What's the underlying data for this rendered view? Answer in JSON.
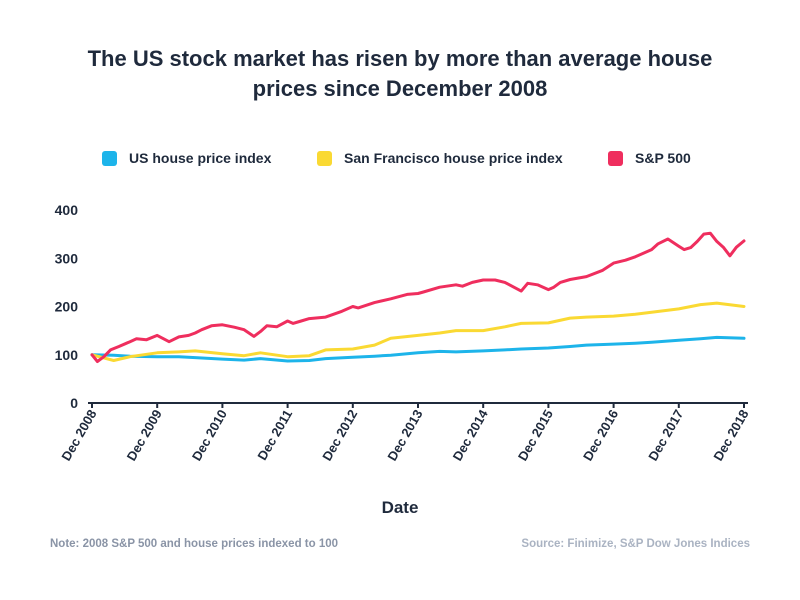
{
  "header": {
    "title_line1": "The US stock market has risen by more than average house",
    "title_line2": "prices since December 2008"
  },
  "footer": {
    "note": "Note: 2008 S&P 500 and house prices indexed to 100",
    "source": "Source: Finimize, S&P Dow Jones Indices"
  },
  "chart_data": {
    "type": "line",
    "title": "The US stock market has risen by more than average house prices since December 2008",
    "xlabel": "Date",
    "ylabel": "",
    "xlim": [
      2008.917,
      2018.917
    ],
    "ylim": [
      0,
      400
    ],
    "y_ticks": [
      0,
      100,
      200,
      300,
      400
    ],
    "x_tick_labels": [
      "Dec 2008",
      "Dec 2009",
      "Dec 2010",
      "Dec 2011",
      "Dec 2012",
      "Dec 2013",
      "Dec 2014",
      "Dec 2015",
      "Dec 2016",
      "Dec 2017",
      "Dec 2018"
    ],
    "x_tick_values": [
      2008.917,
      2009.917,
      2010.917,
      2011.917,
      2012.917,
      2013.917,
      2014.917,
      2015.917,
      2016.917,
      2017.917,
      2018.917
    ],
    "grid": false,
    "legend_position": "top",
    "series": [
      {
        "name": "US house price index",
        "color": "#1db4ea",
        "x": [
          2008.917,
          2009.25,
          2009.5,
          2009.917,
          2010.25,
          2010.5,
          2010.917,
          2011.25,
          2011.5,
          2011.917,
          2012.25,
          2012.5,
          2012.917,
          2013.25,
          2013.5,
          2013.917,
          2014.25,
          2014.5,
          2014.917,
          2015.25,
          2015.5,
          2015.917,
          2016.25,
          2016.5,
          2016.917,
          2017.25,
          2017.5,
          2017.917,
          2018.25,
          2018.5,
          2018.917
        ],
        "y": [
          100,
          99,
          97,
          96,
          96,
          94,
          91,
          89,
          92,
          87,
          88,
          92,
          95,
          97,
          99,
          104,
          107,
          106,
          108,
          110,
          112,
          114,
          117,
          120,
          122,
          124,
          126,
          130,
          133,
          136,
          134
        ]
      },
      {
        "name": "San Francisco house price index",
        "color": "#fad933",
        "x": [
          2008.917,
          2009.25,
          2009.5,
          2009.917,
          2010.25,
          2010.5,
          2010.917,
          2011.25,
          2011.5,
          2011.917,
          2012.25,
          2012.5,
          2012.917,
          2013.25,
          2013.5,
          2013.917,
          2014.25,
          2014.5,
          2014.917,
          2015.25,
          2015.5,
          2015.917,
          2016.25,
          2016.5,
          2016.917,
          2017.25,
          2017.5,
          2017.917,
          2018.25,
          2018.5,
          2018.917
        ],
        "y": [
          100,
          88,
          96,
          104,
          106,
          108,
          102,
          98,
          104,
          96,
          98,
          110,
          112,
          120,
          134,
          140,
          145,
          150,
          150,
          158,
          165,
          166,
          176,
          178,
          180,
          184,
          188,
          195,
          204,
          207,
          200
        ]
      },
      {
        "name": "S&P 500",
        "color": "#ef2e5e",
        "x": [
          2008.917,
          2009.0,
          2009.1,
          2009.2,
          2009.33,
          2009.5,
          2009.6,
          2009.75,
          2009.917,
          2010.1,
          2010.25,
          2010.4,
          2010.5,
          2010.6,
          2010.75,
          2010.917,
          2011.1,
          2011.25,
          2011.4,
          2011.5,
          2011.6,
          2011.75,
          2011.917,
          2012.0,
          2012.1,
          2012.25,
          2012.5,
          2012.75,
          2012.917,
          2013.0,
          2013.25,
          2013.5,
          2013.75,
          2013.917,
          2014.0,
          2014.25,
          2014.5,
          2014.6,
          2014.75,
          2014.917,
          2015.1,
          2015.25,
          2015.5,
          2015.6,
          2015.75,
          2015.917,
          2016.0,
          2016.1,
          2016.25,
          2016.5,
          2016.75,
          2016.917,
          2017.1,
          2017.25,
          2017.5,
          2017.6,
          2017.75,
          2017.917,
          2018.0,
          2018.1,
          2018.2,
          2018.3,
          2018.4,
          2018.5,
          2018.6,
          2018.7,
          2018.8,
          2018.917
        ],
        "y": [
          100,
          86,
          96,
          110,
          117,
          127,
          133,
          131,
          140,
          127,
          137,
          140,
          145,
          152,
          160,
          162,
          157,
          152,
          138,
          148,
          160,
          158,
          170,
          165,
          169,
          175,
          178,
          190,
          200,
          197,
          208,
          216,
          225,
          227,
          230,
          240,
          245,
          242,
          250,
          255,
          255,
          250,
          232,
          248,
          245,
          235,
          240,
          250,
          256,
          262,
          275,
          290,
          296,
          303,
          318,
          330,
          340,
          325,
          318,
          322,
          335,
          350,
          352,
          335,
          323,
          305,
          323,
          336
        ]
      }
    ]
  }
}
